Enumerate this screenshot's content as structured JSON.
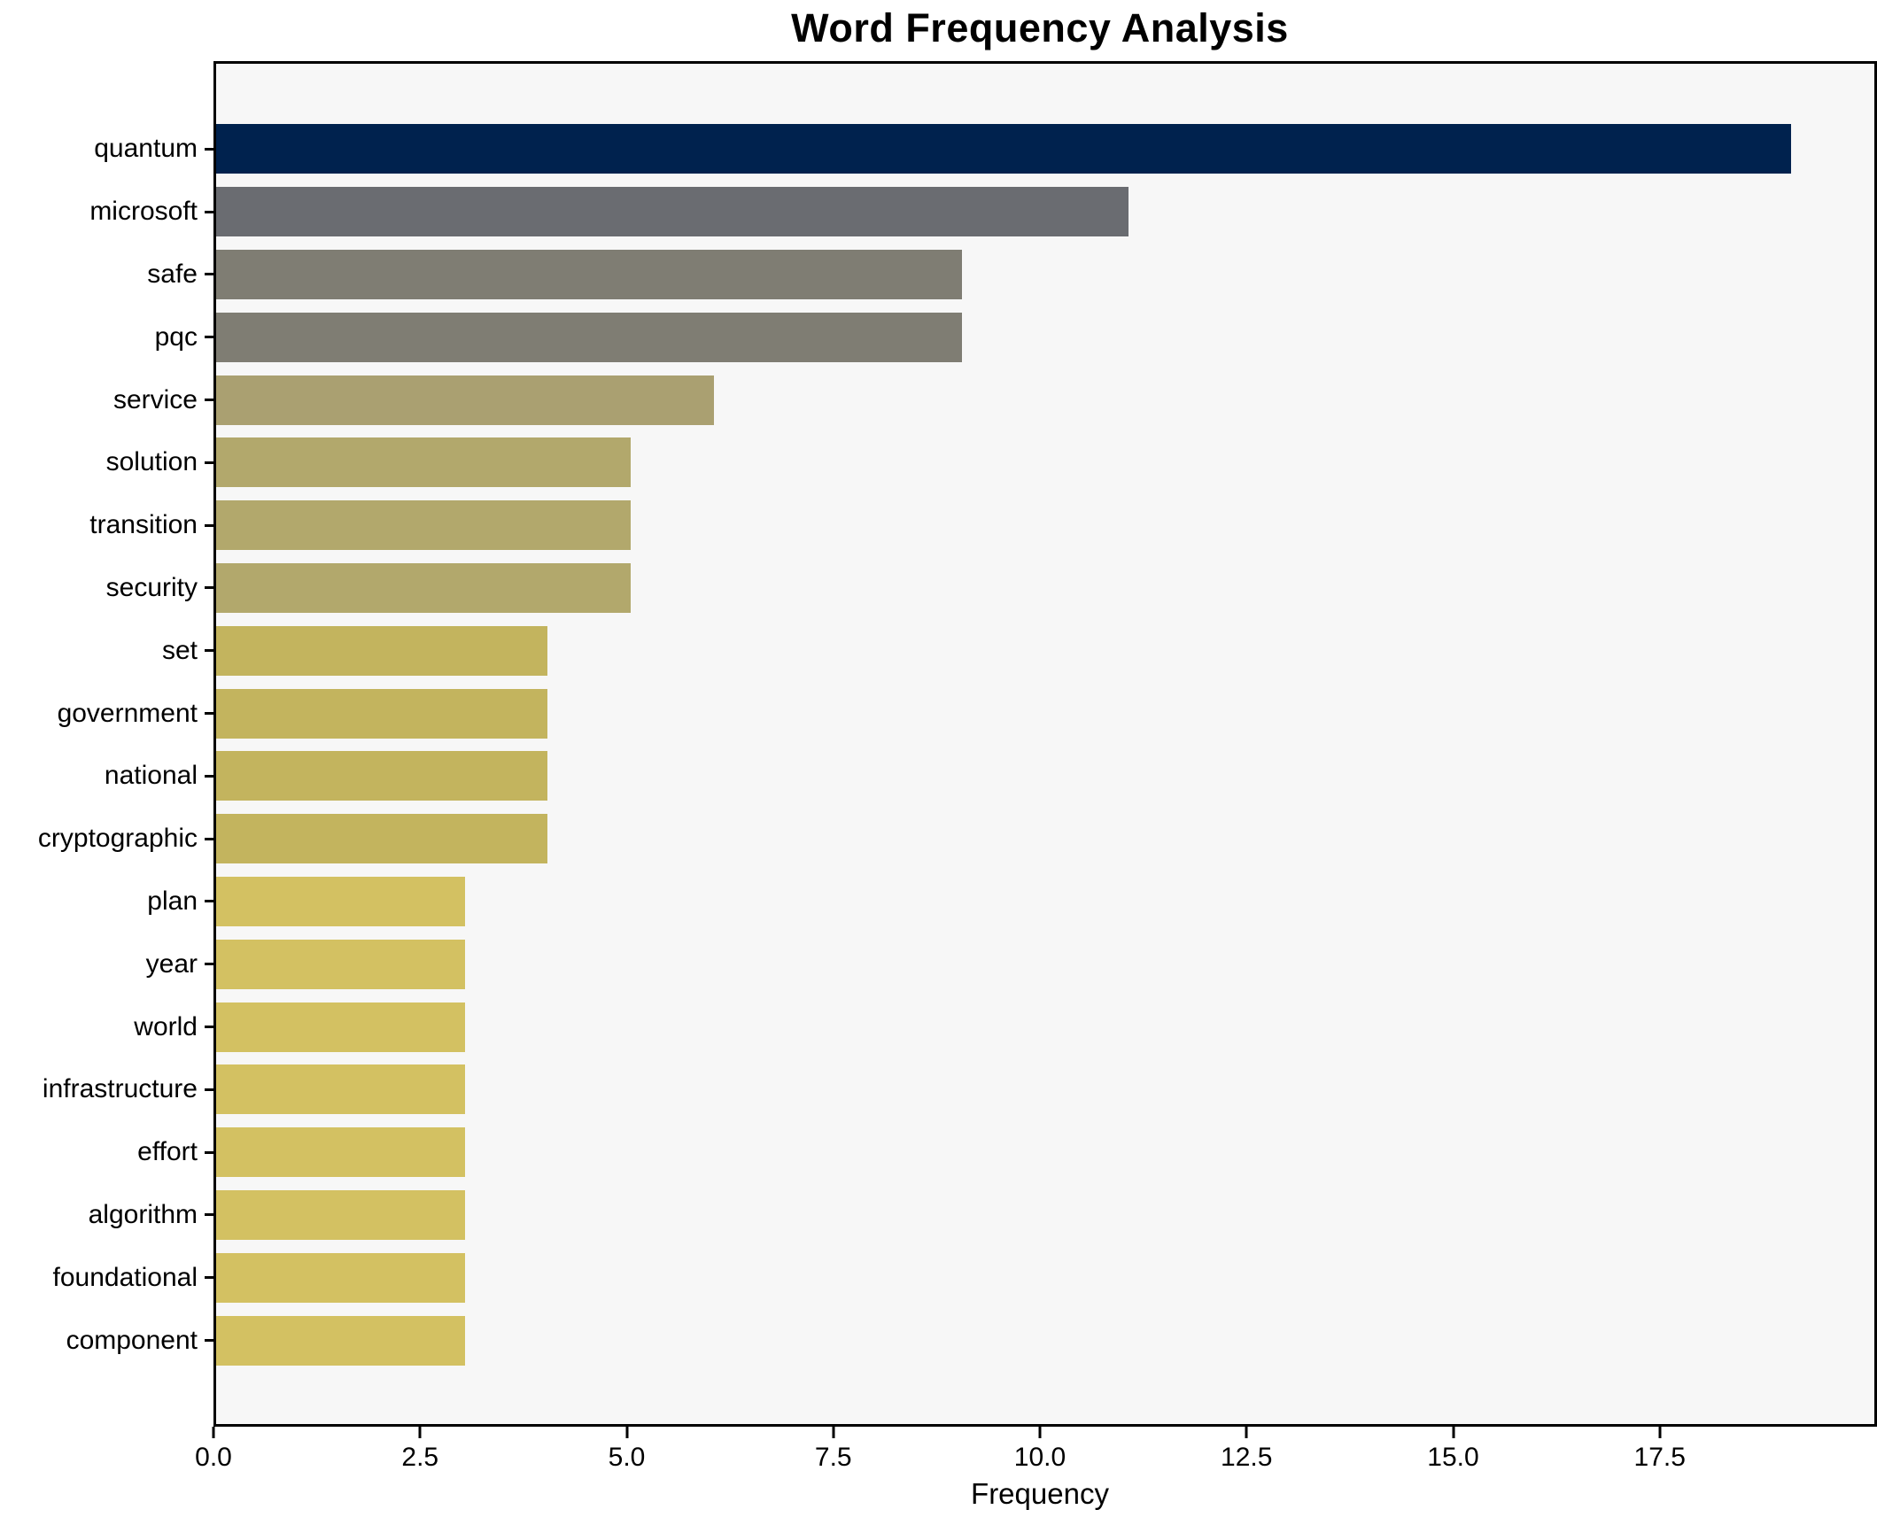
{
  "chart_data": {
    "type": "bar",
    "orientation": "horizontal",
    "title": "Word Frequency Analysis",
    "xlabel": "Frequency",
    "ylabel": "",
    "categories": [
      "quantum",
      "microsoft",
      "safe",
      "pqc",
      "service",
      "solution",
      "transition",
      "security",
      "set",
      "government",
      "national",
      "cryptographic",
      "plan",
      "year",
      "world",
      "infrastructure",
      "effort",
      "algorithm",
      "foundational",
      "component"
    ],
    "values": [
      19,
      11,
      9,
      9,
      6,
      5,
      5,
      5,
      4,
      4,
      4,
      4,
      3,
      3,
      3,
      3,
      3,
      3,
      3,
      3
    ],
    "bar_colors": [
      "#00224e",
      "#6a6c71",
      "#7f7d73",
      "#7f7d73",
      "#aaa071",
      "#b2a86c",
      "#b2a86c",
      "#b2a86c",
      "#c3b45e",
      "#c3b45e",
      "#c3b45e",
      "#c3b45e",
      "#d3c162",
      "#d3c162",
      "#d3c162",
      "#d3c162",
      "#d3c162",
      "#d3c162",
      "#d3c162",
      "#d3c162"
    ],
    "xlim": [
      0,
      20
    ],
    "xticks": [
      0,
      2.5,
      5,
      7.5,
      10,
      12.5,
      15,
      17.5
    ],
    "xtick_labels": [
      "0.0",
      "2.5",
      "5.0",
      "7.5",
      "10.0",
      "12.5",
      "15.0",
      "17.5"
    ],
    "grid": false,
    "legend": null,
    "plot_bg": "#f7f7f7",
    "figure_bg": "#ffffff",
    "colormap": "cividis"
  }
}
